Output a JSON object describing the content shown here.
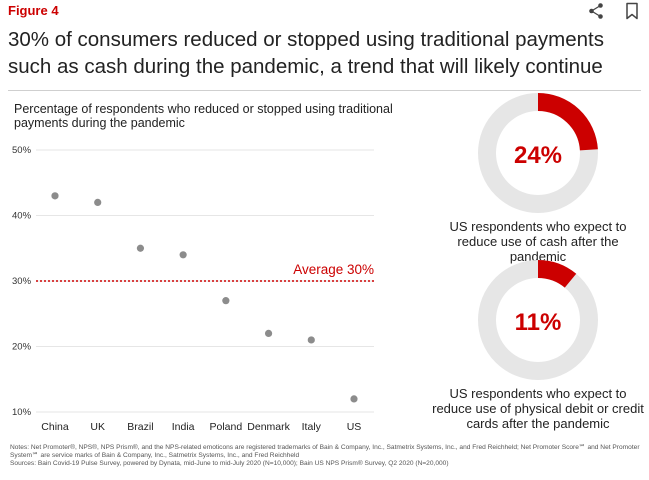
{
  "figure_label": "Figure 4",
  "headline": "30% of consumers reduced or stopped using traditional payments such as cash during the pandemic, a trend that will likely continue",
  "icons": [
    "share-icon",
    "bookmark-icon"
  ],
  "colors": {
    "accent": "#cc0000",
    "dot": "#8c8c8c",
    "ring": "#e6e6e6",
    "grid": "#e6e6e6"
  },
  "chart_data": [
    {
      "type": "scatter",
      "title": "Percentage of respondents who reduced or stopped using traditional payments during the pandemic",
      "categories": [
        "China",
        "UK",
        "Brazil",
        "India",
        "Poland",
        "Denmark",
        "Italy",
        "US"
      ],
      "values": [
        43,
        42,
        35,
        34,
        27,
        22,
        21,
        12
      ],
      "ylim": [
        10,
        50
      ],
      "yticks": [
        "10%",
        "20%",
        "30%",
        "40%",
        "50%"
      ],
      "grid": true,
      "reference_line": {
        "label": "Average 30%",
        "value": 30
      }
    },
    {
      "type": "pie",
      "value": 24,
      "label": "24%",
      "caption": "US respondents who expect to reduce use of cash after the pandemic"
    },
    {
      "type": "pie",
      "value": 11,
      "label": "11%",
      "caption": "US respondents who expect to reduce use of physical debit or credit cards after the pandemic"
    }
  ],
  "notes": [
    "Notes: Net Promoter®, NPS®, NPS Prism®, and the NPS-related emoticons are registered trademarks of Bain & Company, Inc., Satmetrix Systems, Inc., and Fred Reichheld; Net Promoter Score℠ and Net Promoter System℠ are service marks of Bain & Company, Inc., Satmetrix Systems, Inc., and Fred Reichheld",
    "Sources: Bain Covid-19 Pulse Survey, powered by Dynata, mid-June to mid-July 2020 (N=10,000); Bain US NPS Prism® Survey, Q2 2020 (N=20,000)"
  ]
}
